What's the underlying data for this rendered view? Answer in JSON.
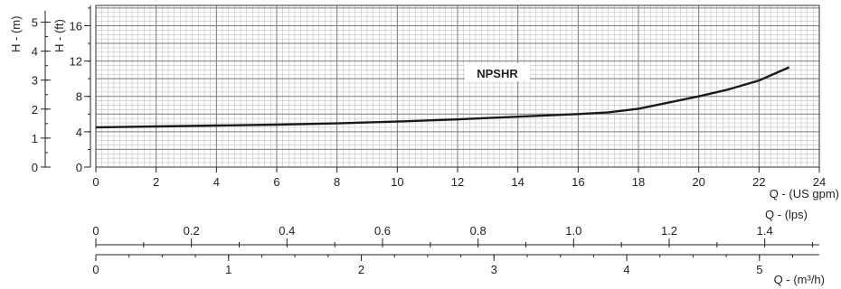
{
  "chart_data": {
    "type": "line",
    "series_label": "NPSHR",
    "x_label": "Q - (US gpm)",
    "x_ticks": [
      "0",
      "2",
      "4",
      "6",
      "8",
      "10",
      "12",
      "14",
      "16",
      "18",
      "20",
      "22",
      "24"
    ],
    "xlim": [
      0,
      24
    ],
    "y_label_ft": "H - (ft)",
    "y_ticks_ft": [
      "0",
      "4",
      "8",
      "12",
      "16"
    ],
    "ylim_ft": [
      0,
      18.3
    ],
    "y_label_m": "H - (m)",
    "y_ticks_m": [
      "0",
      "1",
      "2",
      "3",
      "4",
      "5"
    ],
    "grid": true,
    "series": [
      {
        "name": "NPSHR",
        "x": [
          0,
          2,
          4,
          6,
          8,
          10,
          12,
          14,
          16,
          17,
          18,
          19,
          20,
          21,
          22,
          23
        ],
        "y": [
          4.5,
          4.6,
          4.7,
          4.8,
          4.95,
          5.15,
          5.4,
          5.7,
          6.0,
          6.2,
          6.6,
          7.3,
          8.0,
          8.8,
          9.8,
          11.3
        ]
      }
    ],
    "secondary_axes": [
      {
        "label": "Q - (lps)",
        "ticks": [
          "0",
          "0.2",
          "0.4",
          "0.6",
          "0.8",
          "1.0",
          "1.2",
          "1.4"
        ],
        "values": [
          0,
          0.2,
          0.4,
          0.6,
          0.8,
          1.0,
          1.2,
          1.4
        ],
        "per_gpm": 0.0630902
      },
      {
        "label": "Q - (m³/h)",
        "ticks": [
          "0",
          "1",
          "2",
          "3",
          "4",
          "5"
        ],
        "values": [
          0,
          1,
          2,
          3,
          4,
          5
        ],
        "per_gpm": 0.227125
      }
    ]
  }
}
